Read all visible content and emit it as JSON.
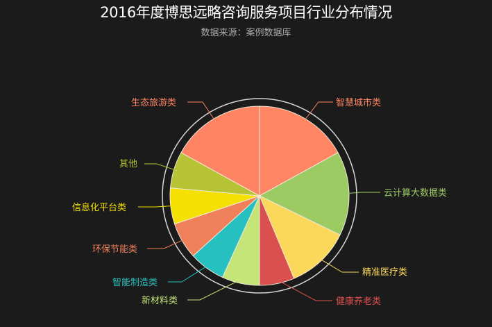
{
  "chart_data": {
    "type": "pie",
    "title": "2016年度博思远略咨询服务项目行业分布情况",
    "subtitle": "数据来源：案例数据库",
    "categories": [
      "智慧城市类",
      "云计算大数据类",
      "精准医疗类",
      "健康养老类",
      "新材料类",
      "智能制造类",
      "环保节能类",
      "信息化平台类",
      "其他",
      "生态旅游类"
    ],
    "values": [
      17,
      15.2,
      11.5,
      6.3,
      6.8,
      6.5,
      6.6,
      6.5,
      6.6,
      17
    ],
    "colors": [
      "#ff8563",
      "#9ccb63",
      "#fcd85a",
      "#d9504f",
      "#c6e579",
      "#26c0c0",
      "#f0805a",
      "#f4e001",
      "#b5c334",
      "#ff8463"
    ],
    "label_colors": [
      "#ff8563",
      "#9ccb63",
      "#fcd85a",
      "#d9504f",
      "#c6e579",
      "#26c0c0",
      "#f0805a",
      "#f4e001",
      "#b5c334",
      "#ff8463"
    ],
    "legend": "none",
    "labels_position": "outside with leader lines"
  },
  "header": {
    "title": "2016年度博思远略咨询服务项目行业分布情况",
    "subtitle": "数据来源：案例数据库"
  },
  "labels": {
    "0": "智慧城市类",
    "1": "云计算大数据类",
    "2": "精准医疗类",
    "3": "健康养老类",
    "4": "新材料类",
    "5": "智能制造类",
    "6": "环保节能类",
    "7": "信息化平台类",
    "8": "其他",
    "9": "生态旅游类"
  }
}
